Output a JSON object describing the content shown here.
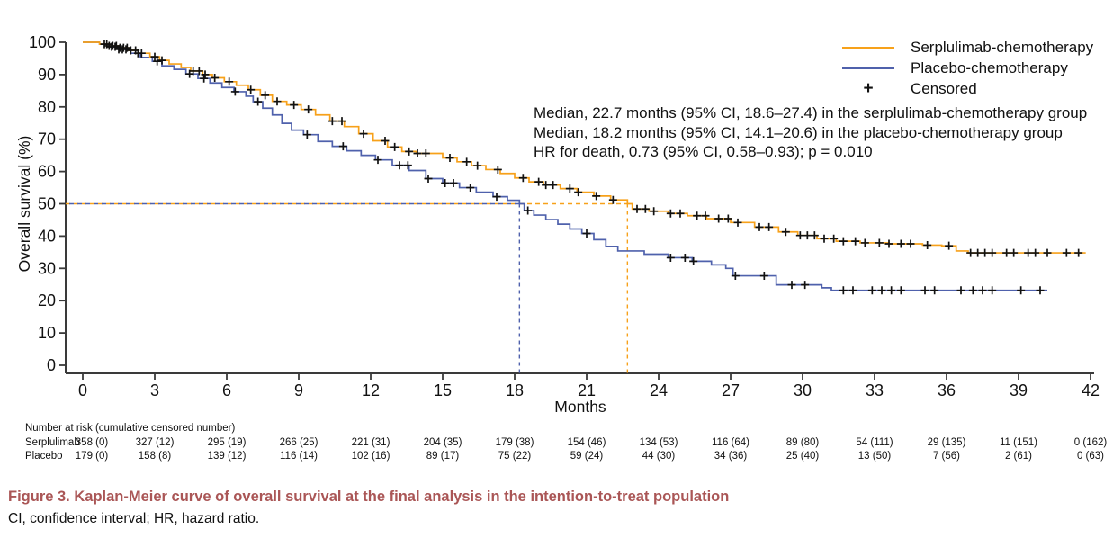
{
  "chart_data": {
    "type": "line",
    "subtype": "kaplan-meier-step",
    "xlabel": "Months",
    "ylabel": "Overall survival (%)",
    "xlim": [
      0,
      42
    ],
    "ylim": [
      0,
      100
    ],
    "xticks": [
      0,
      3,
      6,
      9,
      12,
      15,
      18,
      21,
      24,
      27,
      30,
      33,
      36,
      39,
      42
    ],
    "yticks": [
      0,
      10,
      20,
      30,
      40,
      50,
      60,
      70,
      80,
      90,
      100
    ],
    "grid": false,
    "legend_position": "top-right",
    "legend": [
      {
        "label": "Serplulimab-chemotherapy",
        "color": "#F7A11A"
      },
      {
        "label": "Placebo-chemotherapy",
        "color": "#4F61AC"
      },
      {
        "label": "Censored",
        "marker": "+"
      }
    ],
    "annotations": [
      "Median, 22.7 months (95% CI, 18.6–27.4) in the serplulimab-chemotherapy group",
      "Median, 18.2 months (95% CI, 14.1–20.6) in the placebo-chemotherapy group",
      "HR for death, 0.73 (95% CI, 0.58–0.93); p = 0.010"
    ],
    "median_reference": {
      "survival_pct": 50,
      "serplulimab_median_months": 22.7,
      "placebo_median_months": 18.2
    },
    "series": [
      {
        "name": "Serplulimab-chemotherapy",
        "color": "#F7A11A",
        "points": [
          [
            0,
            100
          ],
          [
            0.7,
            99.4
          ],
          [
            1.1,
            98.9
          ],
          [
            1.5,
            98.3
          ],
          [
            1.9,
            97.5
          ],
          [
            2.3,
            96.6
          ],
          [
            2.8,
            95.5
          ],
          [
            3.2,
            94.4
          ],
          [
            3.6,
            93.3
          ],
          [
            4.1,
            92.2
          ],
          [
            4.5,
            91.1
          ],
          [
            5.0,
            90.0
          ],
          [
            5.4,
            89.0
          ],
          [
            5.9,
            87.8
          ],
          [
            6.4,
            86.7
          ],
          [
            6.9,
            85.3
          ],
          [
            7.4,
            83.6
          ],
          [
            7.9,
            81.7
          ],
          [
            8.5,
            80.6
          ],
          [
            9.1,
            79.2
          ],
          [
            9.7,
            77.5
          ],
          [
            10.3,
            75.6
          ],
          [
            10.9,
            73.9
          ],
          [
            11.5,
            71.7
          ],
          [
            12.1,
            69.5
          ],
          [
            12.7,
            67.6
          ],
          [
            13.3,
            66.2
          ],
          [
            13.9,
            65.6
          ],
          [
            15.0,
            64.2
          ],
          [
            15.6,
            63.0
          ],
          [
            16.2,
            61.8
          ],
          [
            16.8,
            60.6
          ],
          [
            17.4,
            59.4
          ],
          [
            18.0,
            58.0
          ],
          [
            18.6,
            56.8
          ],
          [
            19.2,
            55.8
          ],
          [
            19.9,
            54.7
          ],
          [
            20.6,
            53.6
          ],
          [
            21.3,
            52.4
          ],
          [
            22.0,
            51.2
          ],
          [
            22.7,
            50.0
          ],
          [
            22.9,
            48.4
          ],
          [
            23.6,
            47.7
          ],
          [
            24.4,
            47.0
          ],
          [
            25.2,
            46.3
          ],
          [
            26.0,
            45.4
          ],
          [
            27.0,
            44.2
          ],
          [
            28.0,
            42.8
          ],
          [
            29.0,
            41.3
          ],
          [
            29.8,
            40.2
          ],
          [
            30.6,
            39.2
          ],
          [
            31.4,
            38.4
          ],
          [
            32.4,
            37.9
          ],
          [
            33.6,
            37.6
          ],
          [
            35.0,
            37.2
          ],
          [
            35.8,
            37.0
          ],
          [
            36.4,
            35.4
          ],
          [
            36.9,
            34.8
          ],
          [
            41.8,
            34.8
          ]
        ],
        "censor_months": [
          0.9,
          1.1,
          1.25,
          1.4,
          1.55,
          1.7,
          1.85,
          2.0,
          2.2,
          2.45,
          3.0,
          3.3,
          4.6,
          4.85,
          5.1,
          5.5,
          6.1,
          7.0,
          7.6,
          8.1,
          8.8,
          9.4,
          10.4,
          10.8,
          11.7,
          12.6,
          13.0,
          13.6,
          13.95,
          14.3,
          15.3,
          16.0,
          16.45,
          17.3,
          18.35,
          19.0,
          19.3,
          19.6,
          20.3,
          20.65,
          21.4,
          22.1,
          23.1,
          23.45,
          23.8,
          24.5,
          24.9,
          25.6,
          25.95,
          26.5,
          26.9,
          27.3,
          28.2,
          28.6,
          29.3,
          29.9,
          30.2,
          30.5,
          30.9,
          31.3,
          31.7,
          32.2,
          32.6,
          33.2,
          33.6,
          34.1,
          34.5,
          35.2,
          36.1,
          37.0,
          37.3,
          37.6,
          37.9,
          38.5,
          38.8,
          39.4,
          39.7,
          40.2,
          41.0,
          41.5
        ]
      },
      {
        "name": "Placebo-chemotherapy",
        "color": "#4F61AC",
        "points": [
          [
            0,
            100
          ],
          [
            0.7,
            99.4
          ],
          [
            1.1,
            98.6
          ],
          [
            1.5,
            97.8
          ],
          [
            2.0,
            96.6
          ],
          [
            2.4,
            95.3
          ],
          [
            2.9,
            94.1
          ],
          [
            3.3,
            92.7
          ],
          [
            3.8,
            91.6
          ],
          [
            4.3,
            90.2
          ],
          [
            4.8,
            88.8
          ],
          [
            5.3,
            87.4
          ],
          [
            5.8,
            86.0
          ],
          [
            6.3,
            84.7
          ],
          [
            6.8,
            83.3
          ],
          [
            7.1,
            81.6
          ],
          [
            7.5,
            79.6
          ],
          [
            7.9,
            77.5
          ],
          [
            8.3,
            74.9
          ],
          [
            8.7,
            72.8
          ],
          [
            9.2,
            71.4
          ],
          [
            9.8,
            69.3
          ],
          [
            10.4,
            67.8
          ],
          [
            11.0,
            66.4
          ],
          [
            11.6,
            65.0
          ],
          [
            12.2,
            63.6
          ],
          [
            12.9,
            61.9
          ],
          [
            13.6,
            60.3
          ],
          [
            14.3,
            57.8
          ],
          [
            15.0,
            56.4
          ],
          [
            15.7,
            55.0
          ],
          [
            16.4,
            53.6
          ],
          [
            17.1,
            52.2
          ],
          [
            17.7,
            51.1
          ],
          [
            18.2,
            50.0
          ],
          [
            18.4,
            47.9
          ],
          [
            18.8,
            46.5
          ],
          [
            19.3,
            45.1
          ],
          [
            19.8,
            43.7
          ],
          [
            20.3,
            42.2
          ],
          [
            20.8,
            40.8
          ],
          [
            21.3,
            38.9
          ],
          [
            21.8,
            36.8
          ],
          [
            22.3,
            35.4
          ],
          [
            23.4,
            34.4
          ],
          [
            24.4,
            33.3
          ],
          [
            25.4,
            32.2
          ],
          [
            26.2,
            31.1
          ],
          [
            26.8,
            30.0
          ],
          [
            27.1,
            27.7
          ],
          [
            28.9,
            24.9
          ],
          [
            30.8,
            24.0
          ],
          [
            31.2,
            23.2
          ],
          [
            40.2,
            23.2
          ]
        ],
        "censor_months": [
          1.0,
          1.2,
          1.35,
          1.5,
          1.65,
          1.8,
          2.3,
          3.1,
          4.45,
          5.05,
          6.35,
          7.3,
          9.35,
          10.85,
          12.3,
          13.2,
          13.55,
          14.4,
          15.1,
          15.45,
          16.15,
          17.25,
          18.55,
          21.0,
          24.5,
          25.1,
          25.45,
          27.2,
          28.4,
          29.55,
          30.1,
          31.7,
          32.1,
          32.9,
          33.3,
          33.7,
          34.1,
          35.1,
          35.5,
          36.6,
          37.1,
          37.5,
          37.9,
          39.1,
          39.9
        ]
      }
    ]
  },
  "risk_table": {
    "header": "Number at risk (cumulative censored number)",
    "months": [
      0,
      3,
      6,
      9,
      12,
      15,
      18,
      21,
      24,
      27,
      30,
      33,
      36,
      39,
      42
    ],
    "rows": [
      {
        "label": "Serplulimab",
        "values": [
          "358 (0)",
          "327 (12)",
          "295 (19)",
          "266 (25)",
          "221 (31)",
          "204 (35)",
          "179 (38)",
          "154 (46)",
          "134 (53)",
          "116 (64)",
          "89 (80)",
          "54 (111)",
          "29 (135)",
          "11 (151)",
          "0 (162)"
        ]
      },
      {
        "label": "Placebo",
        "values": [
          "179 (0)",
          "158 (8)",
          "139 (12)",
          "116 (14)",
          "102 (16)",
          "89 (17)",
          "75 (22)",
          "59 (24)",
          "44 (30)",
          "34 (36)",
          "25 (40)",
          "13 (50)",
          "7 (56)",
          "2 (61)",
          "0 (63)"
        ]
      }
    ]
  },
  "caption": {
    "title": "Figure 3.  Kaplan-Meier curve of overall survival at the final analysis in the intention-to-treat population",
    "note": "CI, confidence interval; HR, hazard ratio."
  },
  "colors": {
    "serplulimab": "#F7A11A",
    "placebo": "#4F61AC",
    "axis": "#3a3a3a",
    "censor_mark": "#111111",
    "caption_title": "#AA5656"
  }
}
